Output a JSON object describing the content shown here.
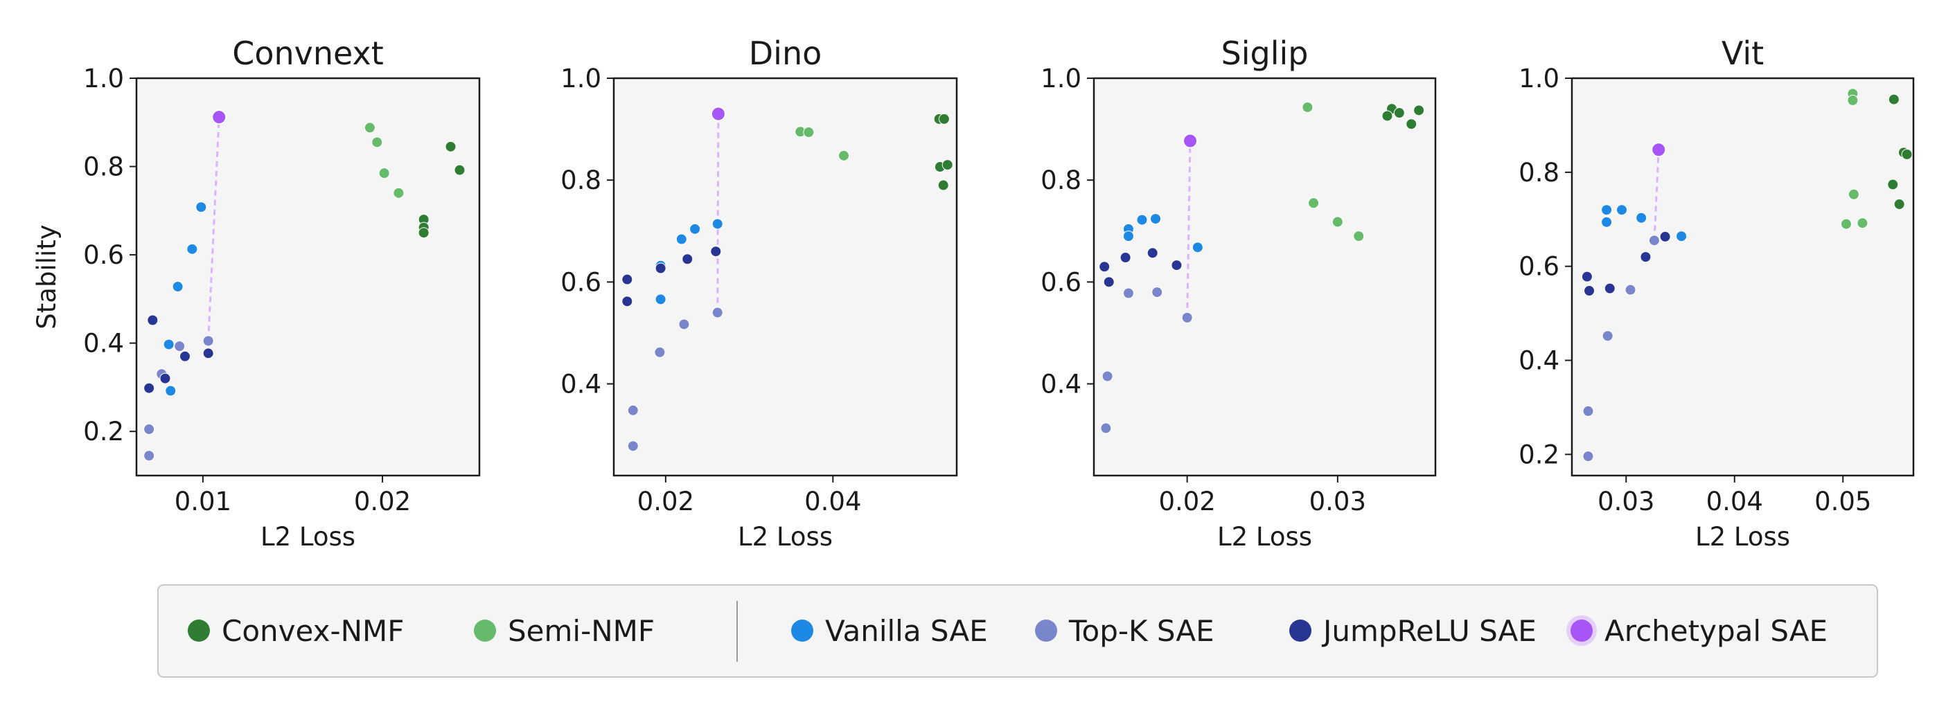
{
  "chart_data": [
    {
      "type": "scatter",
      "title": "Convnext",
      "xlabel": "L2 Loss",
      "ylabel": "Stability",
      "xlim": [
        0.0063,
        0.0254
      ],
      "ylim": [
        0.1,
        1.0
      ],
      "xticks": [
        0.01,
        0.02
      ],
      "xtick_labels": [
        "0.01",
        "0.02"
      ],
      "yticks": [
        0.2,
        0.4,
        0.6,
        0.8,
        1.0
      ],
      "ytick_labels": [
        "0.2",
        "0.4",
        "0.6",
        "0.8",
        "1.0"
      ],
      "series": [
        {
          "name": "Convex-NMF",
          "points": [
            [
              0.0238,
              0.845
            ],
            [
              0.0243,
              0.792
            ],
            [
              0.0223,
              0.68
            ],
            [
              0.0223,
              0.662
            ],
            [
              0.0223,
              0.65
            ]
          ]
        },
        {
          "name": "Semi-NMF",
          "points": [
            [
              0.0193,
              0.888
            ],
            [
              0.0197,
              0.855
            ],
            [
              0.0201,
              0.785
            ],
            [
              0.0209,
              0.74
            ]
          ]
        },
        {
          "name": "Vanilla SAE",
          "points": [
            [
              0.0099,
              0.708
            ],
            [
              0.0094,
              0.613
            ],
            [
              0.0086,
              0.528
            ],
            [
              0.0081,
              0.397
            ],
            [
              0.0082,
              0.292
            ]
          ]
        },
        {
          "name": "Top-K SAE",
          "points": [
            [
              0.0103,
              0.405
            ],
            [
              0.0087,
              0.393
            ],
            [
              0.0077,
              0.33
            ],
            [
              0.007,
              0.205
            ],
            [
              0.007,
              0.145
            ]
          ]
        },
        {
          "name": "JumpReLU SAE",
          "points": [
            [
              0.0072,
              0.452
            ],
            [
              0.0103,
              0.377
            ],
            [
              0.009,
              0.37
            ],
            [
              0.0079,
              0.32
            ],
            [
              0.007,
              0.298
            ]
          ]
        },
        {
          "name": "Archetypal SAE",
          "points": [
            [
              0.0109,
              0.912
            ]
          ]
        }
      ],
      "connector": [
        [
          0.0103,
          0.405
        ],
        [
          0.0109,
          0.912
        ]
      ]
    },
    {
      "type": "scatter",
      "title": "Dino",
      "xlabel": "L2 Loss",
      "ylabel": "",
      "xlim": [
        0.0138,
        0.0548
      ],
      "ylim": [
        0.22,
        1.0
      ],
      "xticks": [
        0.02,
        0.04
      ],
      "xtick_labels": [
        "0.02",
        "0.04"
      ],
      "yticks": [
        0.4,
        0.6,
        0.8,
        1.0
      ],
      "ytick_labels": [
        "0.4",
        "0.6",
        "0.8",
        "1.0"
      ],
      "series": [
        {
          "name": "Convex-NMF",
          "points": [
            [
              0.0527,
              0.92
            ],
            [
              0.0533,
              0.92
            ],
            [
              0.0528,
              0.826
            ],
            [
              0.0537,
              0.83
            ],
            [
              0.0532,
              0.79
            ]
          ]
        },
        {
          "name": "Semi-NMF",
          "points": [
            [
              0.0361,
              0.895
            ],
            [
              0.0371,
              0.894
            ],
            [
              0.0413,
              0.848
            ]
          ]
        },
        {
          "name": "Vanilla SAE",
          "points": [
            [
              0.0262,
              0.714
            ],
            [
              0.0235,
              0.704
            ],
            [
              0.0219,
              0.684
            ],
            [
              0.0194,
              0.632
            ],
            [
              0.0194,
              0.566
            ]
          ]
        },
        {
          "name": "Top-K SAE",
          "points": [
            [
              0.0161,
              0.348
            ],
            [
              0.0161,
              0.278
            ],
            [
              0.0193,
              0.462
            ],
            [
              0.0222,
              0.517
            ],
            [
              0.0262,
              0.54
            ]
          ]
        },
        {
          "name": "JumpReLU SAE",
          "points": [
            [
              0.0154,
              0.605
            ],
            [
              0.0154,
              0.562
            ],
            [
              0.0194,
              0.627
            ],
            [
              0.0226,
              0.645
            ],
            [
              0.026,
              0.66
            ]
          ]
        },
        {
          "name": "Archetypal SAE",
          "points": [
            [
              0.0263,
              0.93
            ]
          ]
        }
      ],
      "connector": [
        [
          0.0262,
          0.54
        ],
        [
          0.0263,
          0.93
        ]
      ]
    },
    {
      "type": "scatter",
      "title": "Siglip",
      "xlabel": "L2 Loss",
      "ylabel": "",
      "xlim": [
        0.0138,
        0.0365
      ],
      "ylim": [
        0.22,
        1.0
      ],
      "xticks": [
        0.02,
        0.03
      ],
      "xtick_labels": [
        "0.02",
        "0.03"
      ],
      "yticks": [
        0.4,
        0.6,
        0.8,
        1.0
      ],
      "ytick_labels": [
        "0.4",
        "0.6",
        "0.8",
        "1.0"
      ],
      "series": [
        {
          "name": "Convex-NMF",
          "points": [
            [
              0.0336,
              0.94
            ],
            [
              0.0341,
              0.932
            ],
            [
              0.0354,
              0.937
            ],
            [
              0.0333,
              0.926
            ],
            [
              0.0349,
              0.91
            ]
          ]
        },
        {
          "name": "Semi-NMF",
          "points": [
            [
              0.028,
              0.943
            ],
            [
              0.0284,
              0.755
            ],
            [
              0.03,
              0.718
            ],
            [
              0.0314,
              0.69
            ]
          ]
        },
        {
          "name": "Vanilla SAE",
          "points": [
            [
              0.0161,
              0.704
            ],
            [
              0.0161,
              0.69
            ],
            [
              0.017,
              0.722
            ],
            [
              0.0179,
              0.724
            ],
            [
              0.0207,
              0.668
            ]
          ]
        },
        {
          "name": "Top-K SAE",
          "points": [
            [
              0.0147,
              0.415
            ],
            [
              0.0146,
              0.313
            ],
            [
              0.0161,
              0.578
            ],
            [
              0.018,
              0.58
            ],
            [
              0.02,
              0.53
            ]
          ]
        },
        {
          "name": "JumpReLU SAE",
          "points": [
            [
              0.0145,
              0.63
            ],
            [
              0.0148,
              0.6
            ],
            [
              0.0159,
              0.648
            ],
            [
              0.0177,
              0.657
            ],
            [
              0.0193,
              0.633
            ]
          ]
        },
        {
          "name": "Archetypal SAE",
          "points": [
            [
              0.0202,
              0.877
            ]
          ]
        }
      ],
      "connector": [
        [
          0.02,
          0.53
        ],
        [
          0.0202,
          0.877
        ]
      ]
    },
    {
      "type": "scatter",
      "title": "Vit",
      "xlabel": "L2 Loss",
      "ylabel": "",
      "xlim": [
        0.025,
        0.0565
      ],
      "ylim": [
        0.155,
        1.0
      ],
      "xticks": [
        0.03,
        0.04,
        0.05
      ],
      "xtick_labels": [
        "0.03",
        "0.04",
        "0.05"
      ],
      "yticks": [
        0.2,
        0.4,
        0.6,
        0.8,
        1.0
      ],
      "ytick_labels": [
        "0.2",
        "0.4",
        "0.6",
        "0.8",
        "1.0"
      ],
      "series": [
        {
          "name": "Convex-NMF",
          "points": [
            [
              0.0547,
              0.955
            ],
            [
              0.0556,
              0.842
            ],
            [
              0.0559,
              0.838
            ],
            [
              0.0546,
              0.774
            ],
            [
              0.0552,
              0.732
            ]
          ]
        },
        {
          "name": "Semi-NMF",
          "points": [
            [
              0.0509,
              0.967
            ],
            [
              0.0509,
              0.953
            ],
            [
              0.051,
              0.753
            ],
            [
              0.0503,
              0.69
            ],
            [
              0.0518,
              0.692
            ]
          ]
        },
        {
          "name": "Vanilla SAE",
          "points": [
            [
              0.0282,
              0.72
            ],
            [
              0.0296,
              0.72
            ],
            [
              0.0282,
              0.694
            ],
            [
              0.0314,
              0.703
            ],
            [
              0.0351,
              0.664
            ]
          ]
        },
        {
          "name": "Top-K SAE",
          "points": [
            [
              0.0283,
              0.452
            ],
            [
              0.0304,
              0.55
            ],
            [
              0.0326,
              0.655
            ],
            [
              0.0265,
              0.292
            ],
            [
              0.0265,
              0.196
            ]
          ]
        },
        {
          "name": "JumpReLU SAE",
          "points": [
            [
              0.0264,
              0.578
            ],
            [
              0.0266,
              0.548
            ],
            [
              0.0285,
              0.553
            ],
            [
              0.0318,
              0.62
            ],
            [
              0.0336,
              0.663
            ]
          ]
        },
        {
          "name": "Archetypal SAE",
          "points": [
            [
              0.033,
              0.848
            ]
          ]
        }
      ],
      "connector": [
        [
          0.0326,
          0.655
        ],
        [
          0.033,
          0.848
        ]
      ]
    }
  ],
  "legend": {
    "placement": "bottom",
    "groups": [
      [
        {
          "label": "Convex-NMF",
          "color": "#2e7d32"
        },
        {
          "label": "Semi-NMF",
          "color": "#66bb6a"
        }
      ],
      [
        {
          "label": "Vanilla SAE",
          "color": "#1e88e5"
        },
        {
          "label": "Top-K SAE",
          "color": "#7986cb"
        },
        {
          "label": "JumpReLU SAE",
          "color": "#283593"
        },
        {
          "label": "Archetypal SAE",
          "color": "#a855f7"
        }
      ]
    ]
  },
  "colors": {
    "Convex-NMF": "#2e7d32",
    "Semi-NMF": "#66bb6a",
    "Vanilla SAE": "#1e88e5",
    "Top-K SAE": "#7986cb",
    "JumpReLU SAE": "#283593",
    "Archetypal SAE": "#a855f7",
    "connector": "#d8b4fe",
    "plot_background": "#f5f5f5",
    "legend_background": "#f5f5f5"
  }
}
